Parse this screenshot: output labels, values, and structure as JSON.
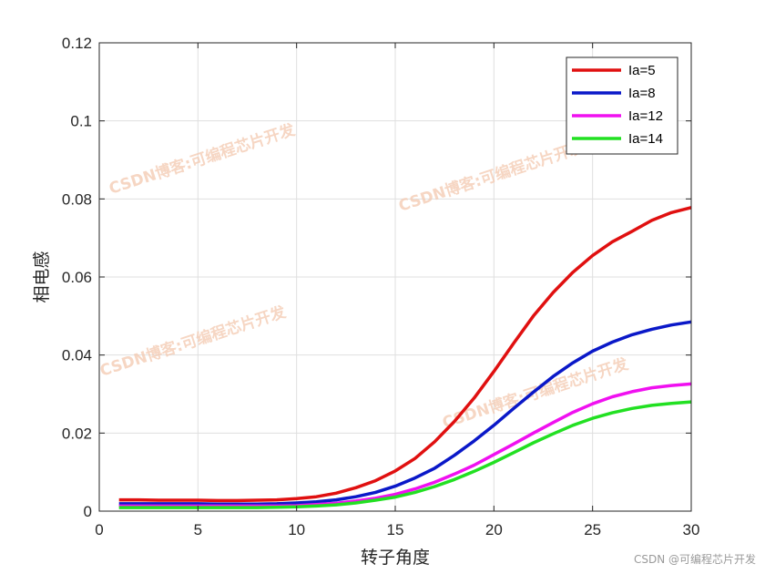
{
  "chart_data": {
    "type": "line",
    "title": "",
    "xlabel": "转子角度",
    "ylabel": "相电感",
    "xlim": [
      0,
      30
    ],
    "ylim": [
      0,
      0.12
    ],
    "xticks": [
      0,
      5,
      10,
      15,
      20,
      25,
      30
    ],
    "xtick_labels": [
      "0",
      "5",
      "10",
      "15",
      "20",
      "25",
      "30"
    ],
    "yticks": [
      0,
      0.02,
      0.04,
      0.06,
      0.08,
      0.1,
      0.12
    ],
    "ytick_labels": [
      "0",
      "0.02",
      "0.04",
      "0.06",
      "0.08",
      "0.1",
      "0.12"
    ],
    "grid": true,
    "legend_position": "top-right",
    "x": [
      1,
      2,
      3,
      4,
      5,
      6,
      7,
      8,
      9,
      10,
      11,
      12,
      13,
      14,
      15,
      16,
      17,
      18,
      19,
      20,
      21,
      22,
      23,
      24,
      25,
      26,
      27,
      28,
      29,
      30
    ],
    "series": [
      {
        "name": "Ia=5",
        "color": "#e01010",
        "values": [
          0.0029,
          0.0029,
          0.0028,
          0.0028,
          0.0028,
          0.0027,
          0.0027,
          0.0028,
          0.0029,
          0.0032,
          0.0037,
          0.0046,
          0.006,
          0.0078,
          0.0103,
          0.0135,
          0.0178,
          0.023,
          0.029,
          0.0358,
          0.043,
          0.05,
          0.056,
          0.0612,
          0.0655,
          0.069,
          0.0717,
          0.0745,
          0.0765,
          0.0778
        ]
      },
      {
        "name": "Ia=8",
        "color": "#0a18c8",
        "values": [
          0.0019,
          0.0019,
          0.0019,
          0.0019,
          0.0019,
          0.0018,
          0.0018,
          0.0018,
          0.0019,
          0.0021,
          0.0024,
          0.0029,
          0.0037,
          0.0048,
          0.0064,
          0.0085,
          0.011,
          0.0143,
          0.018,
          0.022,
          0.0263,
          0.0305,
          0.0345,
          0.038,
          0.041,
          0.0433,
          0.0452,
          0.0466,
          0.0477,
          0.0485
        ]
      },
      {
        "name": "Ia=12",
        "color": "#f010f0",
        "values": [
          0.0013,
          0.0013,
          0.0013,
          0.0013,
          0.0013,
          0.0013,
          0.0013,
          0.0013,
          0.0013,
          0.0014,
          0.0017,
          0.002,
          0.0026,
          0.0033,
          0.0043,
          0.0057,
          0.0074,
          0.0095,
          0.0118,
          0.0145,
          0.0172,
          0.02,
          0.0227,
          0.0253,
          0.0275,
          0.0293,
          0.0306,
          0.0316,
          0.0322,
          0.0326
        ]
      },
      {
        "name": "Ia=14",
        "color": "#22e022",
        "values": [
          0.0009,
          0.0009,
          0.0009,
          0.0009,
          0.0009,
          0.0009,
          0.0009,
          0.0009,
          0.001,
          0.0011,
          0.0013,
          0.0016,
          0.0021,
          0.0028,
          0.0036,
          0.0048,
          0.0063,
          0.0081,
          0.0102,
          0.0125,
          0.015,
          0.0175,
          0.0198,
          0.022,
          0.0238,
          0.0252,
          0.0263,
          0.0271,
          0.0276,
          0.028
        ]
      }
    ]
  },
  "watermarks": [
    "CSDN博客:可编程芯片开发",
    "CSDN博客:可编程芯片开发",
    "CSDN博客:可编程芯片开发",
    "CSDN博客:可编程芯片开发"
  ],
  "footer": "CSDN @可编程芯片开发",
  "colors": {
    "axis": "#262626",
    "grid": "#dfdfdf",
    "watermark": "#f3c9b0"
  }
}
